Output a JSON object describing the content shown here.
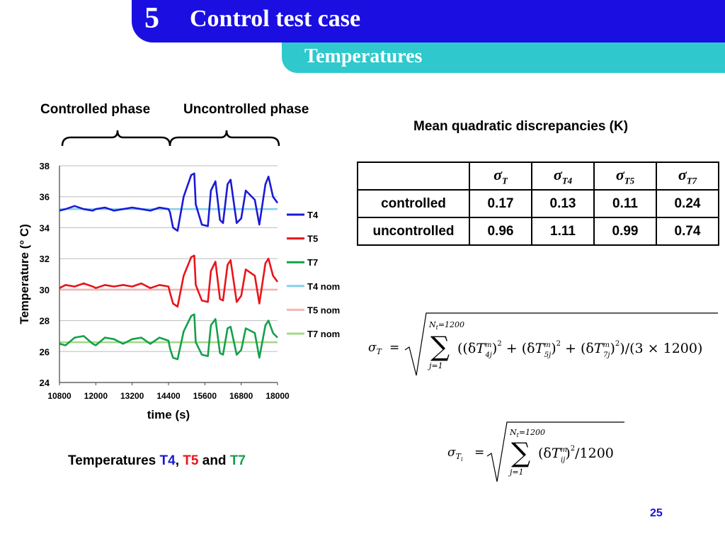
{
  "header": {
    "section_number": "5",
    "title": "Control test case",
    "subtitle": "Temperatures",
    "main_color": "#1a0fe0",
    "sub_color": "#2fc8cc"
  },
  "phases": {
    "controlled": "Controlled phase",
    "uncontrolled": "Uncontrolled phase"
  },
  "chart_caption": {
    "prefix": "Temperatures ",
    "t4": "T4",
    "sep1": ", ",
    "t5": "T5",
    "sep2": " and ",
    "t7": "T7"
  },
  "table": {
    "title": "Mean quadratic discrepancies (K)",
    "columns": [
      {
        "sym": "σ",
        "sub": "T"
      },
      {
        "sym": "σ",
        "sub": "T4"
      },
      {
        "sym": "σ",
        "sub": "T5"
      },
      {
        "sym": "σ",
        "sub": "T7"
      }
    ],
    "rows": [
      {
        "label": "controlled",
        "values": [
          "0.17",
          "0.13",
          "0.11",
          "0.24"
        ]
      },
      {
        "label": "uncontrolled",
        "values": [
          "0.96",
          "1.11",
          "0.99",
          "0.74"
        ]
      }
    ]
  },
  "page_number": "25",
  "chart_data": {
    "type": "line",
    "xlabel": "time (s)",
    "ylabel": "Temperature (° C)",
    "xlim": [
      10800,
      18000
    ],
    "ylim": [
      24,
      38
    ],
    "xticks": [
      "10800",
      "12000",
      "13200",
      "14400",
      "15600",
      "16800",
      "18000"
    ],
    "yticks": [
      "24",
      "26",
      "28",
      "30",
      "32",
      "34",
      "36",
      "38"
    ],
    "legend_position": "right",
    "series": [
      {
        "name": "T4",
        "color": "#1a1ad6",
        "x": [
          10800,
          11000,
          11300,
          11600,
          11900,
          12000,
          12300,
          12600,
          12900,
          13200,
          13500,
          13800,
          14100,
          14400,
          14450,
          14550,
          14700,
          14900,
          15150,
          15250,
          15300,
          15500,
          15700,
          15800,
          15950,
          16100,
          16200,
          16350,
          16450,
          16650,
          16800,
          16950,
          17250,
          17400,
          17600,
          17700,
          17850,
          18000
        ],
        "y": [
          35.1,
          35.2,
          35.4,
          35.2,
          35.1,
          35.2,
          35.3,
          35.1,
          35.2,
          35.3,
          35.2,
          35.1,
          35.3,
          35.2,
          35.0,
          34.0,
          33.8,
          36.0,
          37.4,
          37.5,
          35.5,
          34.2,
          34.1,
          36.4,
          37.0,
          34.5,
          34.3,
          36.8,
          37.1,
          34.3,
          34.6,
          36.4,
          35.8,
          34.2,
          36.8,
          37.3,
          36.0,
          35.6
        ]
      },
      {
        "name": "T5",
        "color": "#e8141a",
        "x": [
          10800,
          11000,
          11300,
          11600,
          11900,
          12000,
          12300,
          12600,
          12900,
          13200,
          13500,
          13800,
          14100,
          14400,
          14450,
          14550,
          14700,
          14900,
          15150,
          15250,
          15300,
          15500,
          15700,
          15800,
          15950,
          16100,
          16200,
          16350,
          16450,
          16650,
          16800,
          16950,
          17250,
          17400,
          17600,
          17700,
          17850,
          18000
        ],
        "y": [
          30.1,
          30.3,
          30.2,
          30.4,
          30.2,
          30.1,
          30.3,
          30.2,
          30.3,
          30.2,
          30.4,
          30.1,
          30.3,
          30.2,
          29.8,
          29.1,
          28.9,
          30.9,
          32.1,
          32.2,
          30.3,
          29.3,
          29.2,
          31.2,
          31.8,
          29.4,
          29.3,
          31.6,
          31.9,
          29.2,
          29.6,
          31.3,
          30.9,
          29.1,
          31.7,
          32.0,
          30.9,
          30.5
        ]
      },
      {
        "name": "T7",
        "color": "#14a04a",
        "x": [
          10800,
          11000,
          11300,
          11600,
          11900,
          12000,
          12300,
          12600,
          12900,
          13200,
          13500,
          13800,
          14100,
          14400,
          14450,
          14550,
          14700,
          14900,
          15150,
          15250,
          15300,
          15500,
          15700,
          15800,
          15950,
          16100,
          16200,
          16350,
          16450,
          16650,
          16800,
          16950,
          17250,
          17400,
          17600,
          17700,
          17850,
          18000
        ],
        "y": [
          26.5,
          26.4,
          26.9,
          27.0,
          26.5,
          26.4,
          26.9,
          26.8,
          26.5,
          26.8,
          26.9,
          26.5,
          26.9,
          26.7,
          26.2,
          25.6,
          25.5,
          27.3,
          28.3,
          28.4,
          26.6,
          25.8,
          25.7,
          27.7,
          28.1,
          25.9,
          25.8,
          27.5,
          27.6,
          25.8,
          26.1,
          27.5,
          27.2,
          25.6,
          27.7,
          28.0,
          27.2,
          26.9
        ]
      },
      {
        "name": "T4 nom",
        "color": "#86cfee",
        "x": [
          10800,
          18000
        ],
        "y": [
          35.2,
          35.2
        ]
      },
      {
        "name": "T5 nom",
        "color": "#f3b4b4",
        "x": [
          10800,
          18000
        ],
        "y": [
          30.0,
          30.0
        ]
      },
      {
        "name": "T7 nom",
        "color": "#a6d88a",
        "x": [
          10800,
          18000
        ],
        "y": [
          26.6,
          26.6
        ]
      }
    ]
  }
}
